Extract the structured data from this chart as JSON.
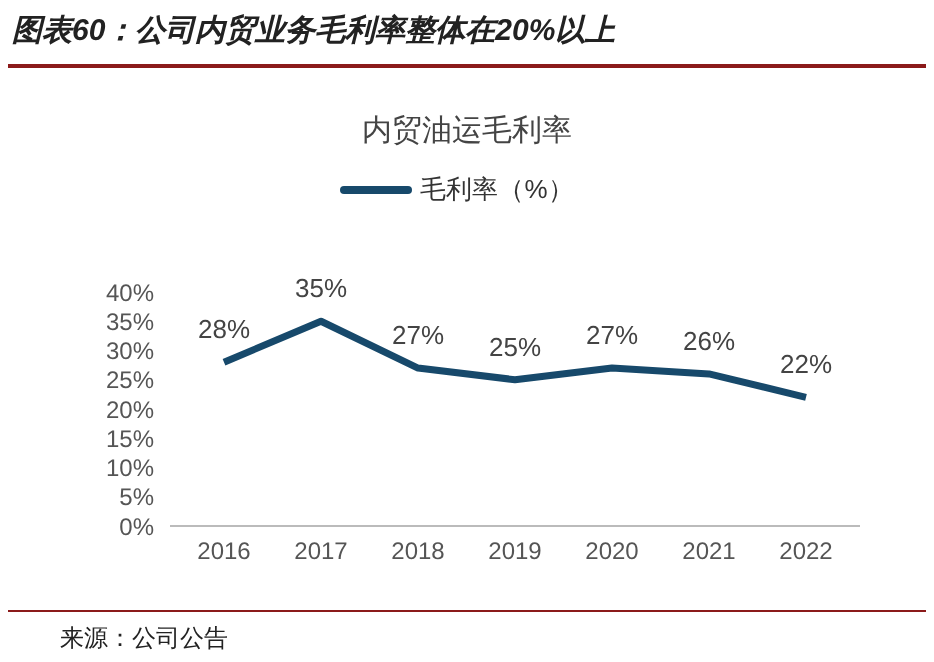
{
  "chart_data": {
    "type": "line",
    "title": "图表60：公司内贸业务毛利率整体在20%以上",
    "subtitle": "内贸油运毛利率",
    "categories": [
      "2016",
      "2017",
      "2018",
      "2019",
      "2020",
      "2021",
      "2022"
    ],
    "series": [
      {
        "name": "毛利率（%）",
        "color": "#17496b",
        "values": [
          28,
          35,
          27,
          25,
          27,
          26,
          22
        ],
        "value_labels": [
          "28%",
          "35%",
          "27%",
          "25%",
          "27%",
          "26%",
          "22%"
        ]
      }
    ],
    "ylim": [
      0,
      40
    ],
    "yticks": [
      {
        "value": 0,
        "label": "0%"
      },
      {
        "value": 5,
        "label": "5%"
      },
      {
        "value": 10,
        "label": "10%"
      },
      {
        "value": 15,
        "label": "15%"
      },
      {
        "value": 20,
        "label": "20%"
      },
      {
        "value": 25,
        "label": "25%"
      },
      {
        "value": 30,
        "label": "30%"
      },
      {
        "value": 35,
        "label": "35%"
      },
      {
        "value": 40,
        "label": "40%"
      }
    ],
    "legend": "top",
    "marker": "none",
    "annotations": [
      "来源：公司公告"
    ]
  }
}
